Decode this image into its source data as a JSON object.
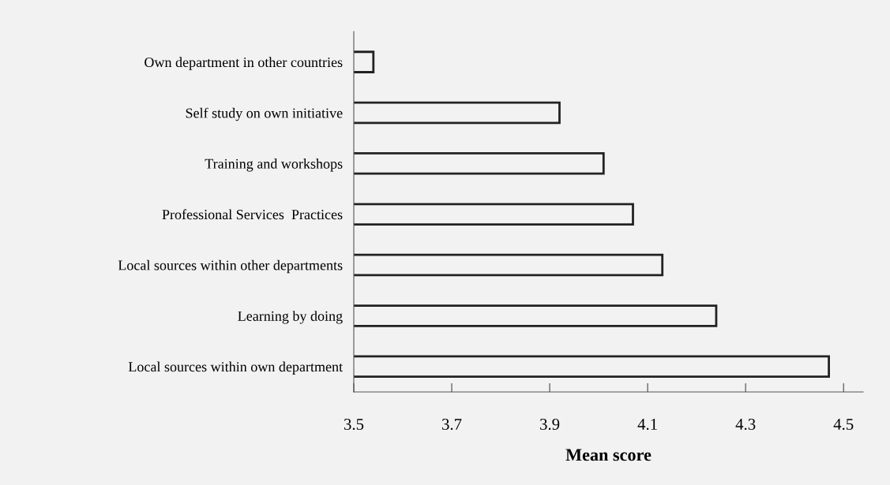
{
  "chart_data": {
    "type": "bar",
    "orientation": "horizontal",
    "xlabel": "Mean score",
    "categories": [
      "Own department in other countries",
      "Self study on own initiative",
      "Training and workshops",
      "Professional Services  Practices",
      "Local sources within other departments",
      "Learning by doing",
      "Local sources within own department"
    ],
    "values": [
      3.54,
      3.92,
      4.01,
      4.07,
      4.13,
      4.24,
      4.47
    ],
    "color": "#f2f2f2",
    "xlim": [
      3.5,
      4.54
    ],
    "xticks": [
      3.5,
      3.7,
      3.9,
      4.1,
      4.3,
      4.5
    ],
    "grid": false
  }
}
